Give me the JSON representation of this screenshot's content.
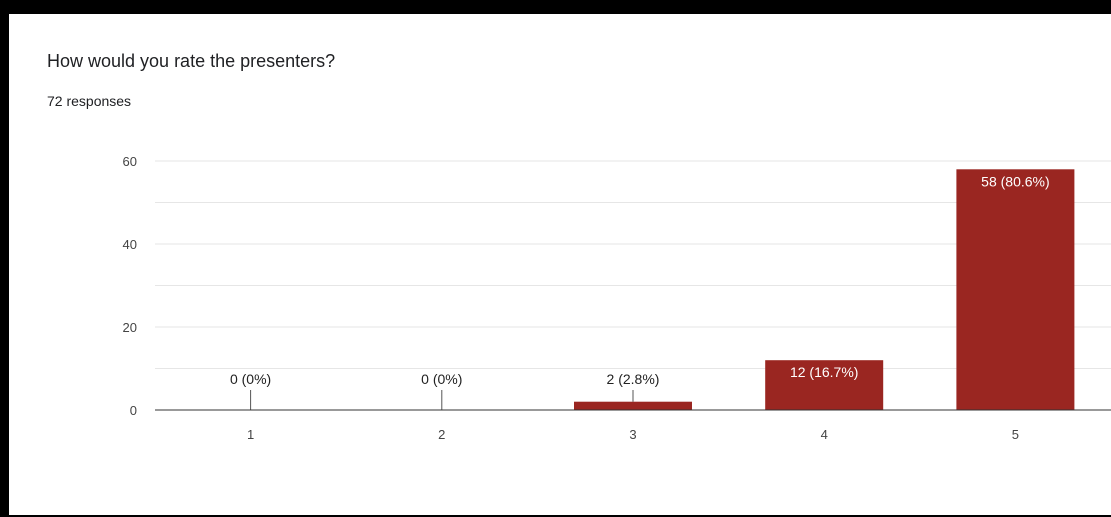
{
  "card": {
    "title": "How would you rate the presenters?",
    "subtitle": "72 responses"
  },
  "chart_data": {
    "type": "bar",
    "title": "How would you rate the presenters?",
    "subtitle": "72 responses",
    "categories": [
      "1",
      "2",
      "3",
      "4",
      "5"
    ],
    "values": [
      0,
      0,
      2,
      12,
      58
    ],
    "labels": [
      "0 (0%)",
      "0 (0%)",
      "2 (2.8%)",
      "12 (16.7%)",
      "58 (80.6%)"
    ],
    "ylim": [
      0,
      60
    ],
    "yticks": [
      0,
      20,
      40,
      60
    ],
    "ytick_labels": [
      "0",
      "20",
      "40",
      "60"
    ],
    "grid": true,
    "xlabel": "",
    "ylabel": "",
    "bar_color": "#9a2621",
    "grid_color": "#e6e6e6",
    "axis_color": "#333333"
  }
}
